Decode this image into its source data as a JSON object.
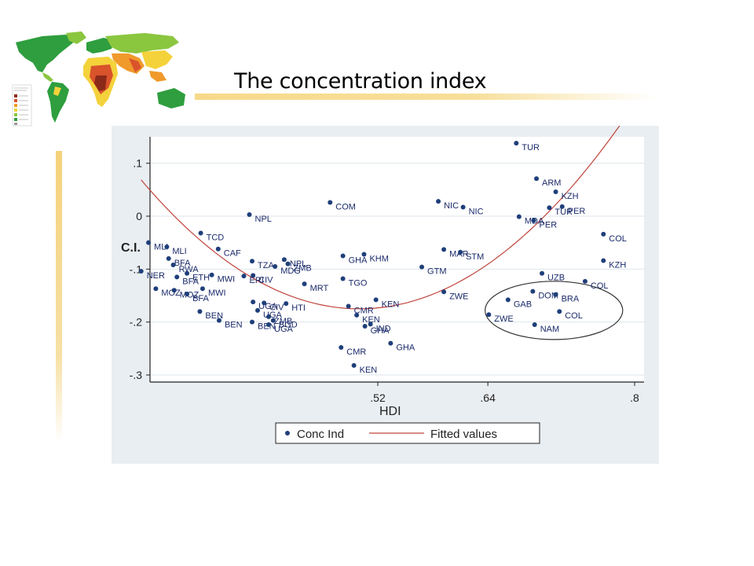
{
  "slide": {
    "title": "The concentration index"
  },
  "colors": {
    "marker": "#1f3f7a",
    "fit_line": "#c0443c",
    "plot_bg": "#ffffff",
    "panel_bg": "#e9eef2",
    "grid": "#dde6ec",
    "ellipse": "#333333",
    "map_water": "#ffffff",
    "map_colors": [
      "#2e9e3e",
      "#8bc63f",
      "#f4d23b",
      "#f09a2b",
      "#d9532b",
      "#8b2a18"
    ]
  },
  "chart_data": {
    "type": "scatter",
    "xlabel": "HDI",
    "ylabel": "C.I.",
    "xlim": [
      0.25,
      0.805
    ],
    "ylim": [
      -0.31,
      0.15
    ],
    "xticks": [
      0.52,
      0.64,
      0.8
    ],
    "xtick_labels": [
      ".52",
      ".64",
      ".8"
    ],
    "yticks": [
      0.1,
      0,
      -0.1,
      -0.2,
      -0.3
    ],
    "ytick_labels": [
      ".1",
      "0",
      "-.1",
      "-.2",
      "-.3"
    ],
    "grid": "horizontal",
    "legend": {
      "placement": "bottom",
      "entries": [
        "Conc Ind",
        "Fitted values"
      ]
    },
    "fitted": {
      "form": "quadratic",
      "vertex_x": 0.5,
      "vertex_y": -0.175,
      "curvature": 4.3,
      "x_range": [
        0.262,
        0.8
      ]
    },
    "highlight_ellipse": {
      "cx": 0.712,
      "cy": -0.178,
      "rx": 0.075,
      "ry": 0.055
    },
    "series": [
      {
        "name": "Conc Ind",
        "points": [
          {
            "label": "NER",
            "x": 0.262,
            "y": -0.104
          },
          {
            "label": "MLI",
            "x": 0.27,
            "y": -0.05
          },
          {
            "label": "MLI",
            "x": 0.29,
            "y": -0.058
          },
          {
            "label": "BFA",
            "x": 0.292,
            "y": -0.08
          },
          {
            "label": "RWA",
            "x": 0.297,
            "y": -0.092
          },
          {
            "label": "BFA",
            "x": 0.301,
            "y": -0.115
          },
          {
            "label": "ETH",
            "x": 0.312,
            "y": -0.108
          },
          {
            "label": "MOZ",
            "x": 0.278,
            "y": -0.137
          },
          {
            "label": "MOZ",
            "x": 0.298,
            "y": -0.14
          },
          {
            "label": "BFA",
            "x": 0.312,
            "y": -0.147
          },
          {
            "label": "TCD",
            "x": 0.327,
            "y": -0.032
          },
          {
            "label": "MWI",
            "x": 0.329,
            "y": -0.137
          },
          {
            "label": "MWI",
            "x": 0.339,
            "y": -0.111
          },
          {
            "label": "BEN",
            "x": 0.326,
            "y": -0.18
          },
          {
            "label": "BEN",
            "x": 0.347,
            "y": -0.197
          },
          {
            "label": "CAF",
            "x": 0.346,
            "y": -0.062
          },
          {
            "label": "NPL",
            "x": 0.38,
            "y": 0.003
          },
          {
            "label": "TZA",
            "x": 0.383,
            "y": -0.085
          },
          {
            "label": "ERI",
            "x": 0.374,
            "y": -0.113
          },
          {
            "label": "CIV",
            "x": 0.384,
            "y": -0.112
          },
          {
            "label": "UGA",
            "x": 0.384,
            "y": -0.162
          },
          {
            "label": "UGA",
            "x": 0.389,
            "y": -0.178
          },
          {
            "label": "BEN",
            "x": 0.383,
            "y": -0.2
          },
          {
            "label": "CIV",
            "x": 0.396,
            "y": -0.164
          },
          {
            "label": "ZMB",
            "x": 0.401,
            "y": -0.19
          },
          {
            "label": "UGA",
            "x": 0.401,
            "y": -0.205
          },
          {
            "label": "BGD",
            "x": 0.406,
            "y": -0.197
          },
          {
            "label": "MDG",
            "x": 0.408,
            "y": -0.095
          },
          {
            "label": "NPL",
            "x": 0.418,
            "y": -0.082
          },
          {
            "label": "ZMB",
            "x": 0.422,
            "y": -0.09
          },
          {
            "label": "HTI",
            "x": 0.42,
            "y": -0.165
          },
          {
            "label": "MRT",
            "x": 0.44,
            "y": -0.128
          },
          {
            "label": "COM",
            "x": 0.468,
            "y": 0.026
          },
          {
            "label": "GHA",
            "x": 0.482,
            "y": -0.075
          },
          {
            "label": "TGO",
            "x": 0.482,
            "y": -0.118
          },
          {
            "label": "CMR",
            "x": 0.48,
            "y": -0.248
          },
          {
            "label": "CMR",
            "x": 0.488,
            "y": -0.17
          },
          {
            "label": "KEN",
            "x": 0.494,
            "y": -0.282
          },
          {
            "label": "KHM",
            "x": 0.505,
            "y": -0.072
          },
          {
            "label": "KEN",
            "x": 0.497,
            "y": -0.187
          },
          {
            "label": "KEN",
            "x": 0.518,
            "y": -0.158
          },
          {
            "label": "GHA",
            "x": 0.506,
            "y": -0.208
          },
          {
            "label": "IND",
            "x": 0.512,
            "y": -0.204
          },
          {
            "label": "GHA",
            "x": 0.534,
            "y": -0.24
          },
          {
            "label": "GTM",
            "x": 0.568,
            "y": -0.096
          },
          {
            "label": "NIC",
            "x": 0.586,
            "y": 0.028
          },
          {
            "label": "NIC",
            "x": 0.613,
            "y": 0.017
          },
          {
            "label": "MAR",
            "x": 0.592,
            "y": -0.063
          },
          {
            "label": "STM",
            "x": 0.61,
            "y": -0.068
          },
          {
            "label": "ZWE",
            "x": 0.592,
            "y": -0.143
          },
          {
            "label": "ZWE",
            "x": 0.641,
            "y": -0.186
          },
          {
            "label": "TUR",
            "x": 0.671,
            "y": 0.138
          },
          {
            "label": "ARM",
            "x": 0.693,
            "y": 0.071
          },
          {
            "label": "KZH",
            "x": 0.714,
            "y": 0.046
          },
          {
            "label": "TUR",
            "x": 0.707,
            "y": 0.016
          },
          {
            "label": "PER",
            "x": 0.721,
            "y": 0.018
          },
          {
            "label": "MDA",
            "x": 0.674,
            "y": -0.001
          },
          {
            "label": "PER",
            "x": 0.69,
            "y": -0.008
          },
          {
            "label": "COL",
            "x": 0.766,
            "y": -0.034
          },
          {
            "label": "KZH",
            "x": 0.766,
            "y": -0.084
          },
          {
            "label": "UZB",
            "x": 0.699,
            "y": -0.108
          },
          {
            "label": "COL",
            "x": 0.746,
            "y": -0.123
          },
          {
            "label": "GAB",
            "x": 0.662,
            "y": -0.158
          },
          {
            "label": "DOM",
            "x": 0.689,
            "y": -0.142
          },
          {
            "label": "BRA",
            "x": 0.714,
            "y": -0.148
          },
          {
            "label": "COL",
            "x": 0.718,
            "y": -0.18
          },
          {
            "label": "NAM",
            "x": 0.691,
            "y": -0.205
          }
        ]
      },
      {
        "name": "Fitted values"
      }
    ]
  }
}
